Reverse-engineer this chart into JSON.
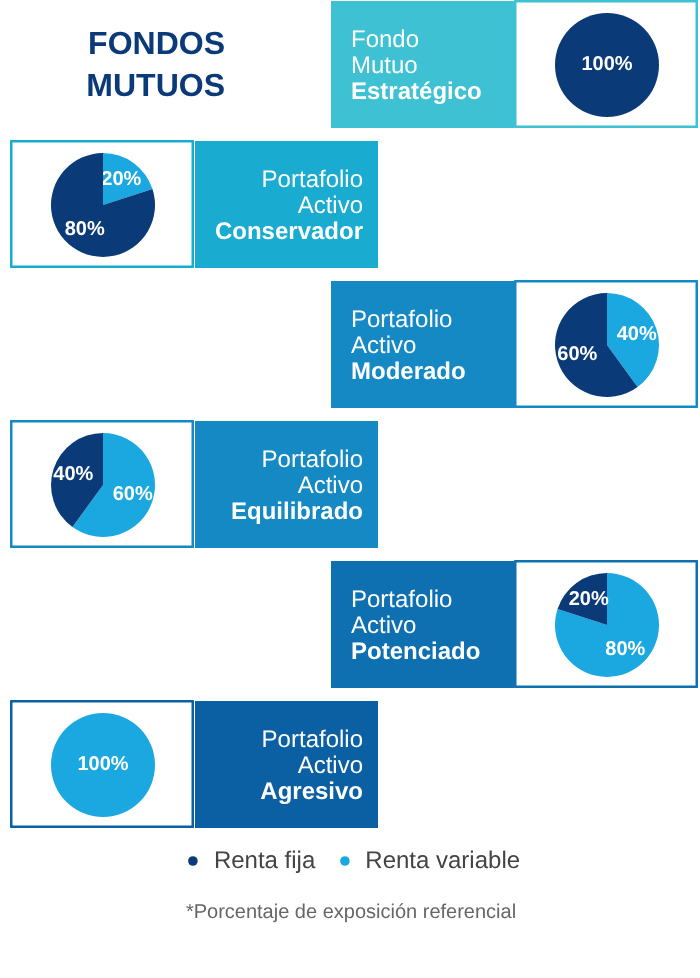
{
  "chart_data": [
    {
      "type": "pie",
      "title": "Fondo Mutuo Estratégico",
      "annotations": [
        "FONDOS MUTUOS"
      ],
      "values": [
        100,
        0
      ],
      "colors": [
        "#0b3a78",
        "#1ba8e0"
      ],
      "value_labels": [
        "100%",
        null
      ]
    },
    {
      "type": "pie",
      "title": "Portafolio Activo Conservador",
      "values": [
        80,
        20
      ],
      "colors": [
        "#0b3a78",
        "#1ba8e0"
      ],
      "value_labels": [
        "80%",
        "20%"
      ]
    },
    {
      "type": "pie",
      "title": "Portafolio Activo Moderado",
      "values": [
        60,
        40
      ],
      "colors": [
        "#0b3a78",
        "#1ba8e0"
      ],
      "value_labels": [
        "60%",
        "40%"
      ]
    },
    {
      "type": "pie",
      "title": "Portafolio Activo Equilibrado",
      "values": [
        40,
        60
      ],
      "colors": [
        "#0b3a78",
        "#1ba8e0"
      ],
      "value_labels": [
        "40%",
        "60%"
      ]
    },
    {
      "type": "pie",
      "title": "Portafolio Activo Potenciado",
      "values": [
        20,
        80
      ],
      "colors": [
        "#0b3a78",
        "#1ba8e0"
      ],
      "value_labels": [
        "20%",
        "80%"
      ]
    },
    {
      "type": "pie",
      "title": "Portafolio Activo Agresivo",
      "categories": [
        "Renta fija",
        "Renta variable"
      ],
      "values": [
        0,
        100
      ],
      "colors": [
        "#0b3a78",
        "#1ba8e0"
      ],
      "value_labels": [
        null,
        "100%"
      ],
      "legend": "bottom",
      "annotations": [
        "*Porcentaje de exposición referencial"
      ]
    }
  ]
}
